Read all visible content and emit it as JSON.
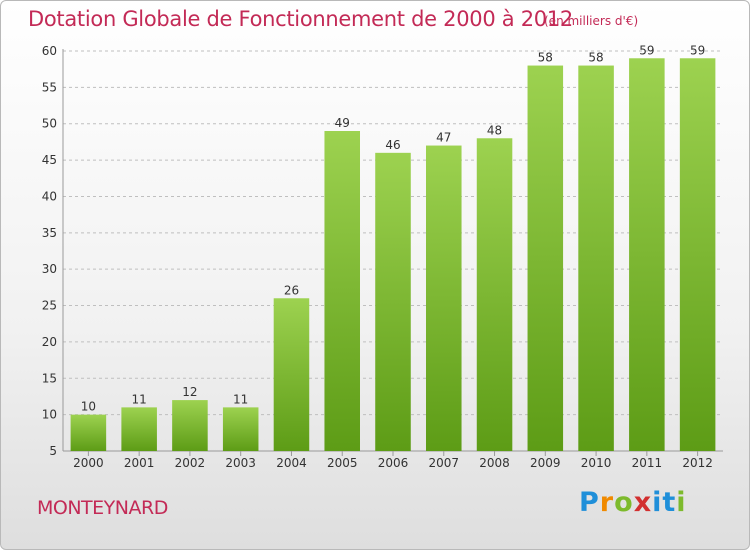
{
  "header": {
    "title": "Dotation Globale de Fonctionnement de 2000 à 2012",
    "unit_note": "(en milliers d'€)"
  },
  "footer": {
    "commune": "MONTEYNARD",
    "logo_text": "Proxiti"
  },
  "colors": {
    "accent": "#c32a56",
    "bar_light": "#9dd250",
    "bar_dark": "#5d9c16",
    "grid": "#bfbfbf",
    "axis_text": "#333333"
  },
  "chart_data": {
    "type": "bar",
    "title": "Dotation Globale de Fonctionnement de 2000 à 2012",
    "subtitle": "(en milliers d'€)",
    "xlabel": "",
    "ylabel": "",
    "categories": [
      "2000",
      "2001",
      "2002",
      "2003",
      "2004",
      "2005",
      "2006",
      "2007",
      "2008",
      "2009",
      "2010",
      "2011",
      "2012"
    ],
    "values": [
      10,
      11,
      12,
      11,
      26,
      49,
      46,
      47,
      48,
      58,
      58,
      59,
      59
    ],
    "ylim": [
      5,
      60
    ],
    "yticks": [
      5,
      10,
      15,
      20,
      25,
      30,
      35,
      40,
      45,
      50,
      55,
      60
    ],
    "grid": true,
    "data_labels": true,
    "legend": "none"
  }
}
